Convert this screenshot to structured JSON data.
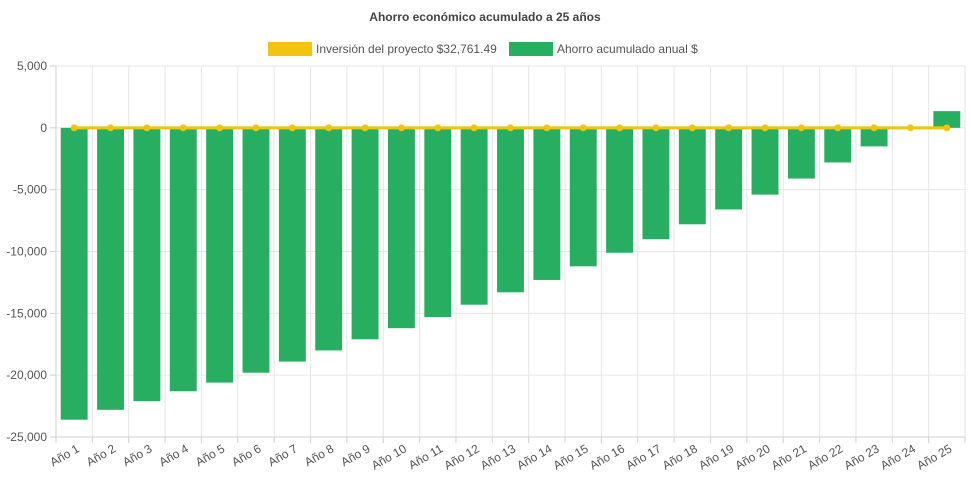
{
  "chart_data": {
    "type": "bar",
    "title": "Ahorro económico acumulado a 25 años",
    "categories": [
      "Año 1",
      "Año 2",
      "Año 3",
      "Año 4",
      "Año 5",
      "Año 6",
      "Año 7",
      "Año 8",
      "Año 9",
      "Año 10",
      "Año 11",
      "Año 12",
      "Año 13",
      "Año 14",
      "Año 15",
      "Año 16",
      "Año 17",
      "Año 18",
      "Año 19",
      "Año 20",
      "Año 21",
      "Año 22",
      "Año 23",
      "Año 24",
      "Año 25"
    ],
    "series": [
      {
        "name": "Inversión del proyecto $32,761.49",
        "kind": "line",
        "color": "#f1c40f",
        "values": [
          0,
          0,
          0,
          0,
          0,
          0,
          0,
          0,
          0,
          0,
          0,
          0,
          0,
          0,
          0,
          0,
          0,
          0,
          0,
          0,
          0,
          0,
          0,
          0,
          0
        ]
      },
      {
        "name": "Ahorro acumulado anual $",
        "kind": "bar",
        "color": "#27ae60",
        "values": [
          -23600,
          -22800,
          -22100,
          -21300,
          -20600,
          -19800,
          -18900,
          -18000,
          -17100,
          -16200,
          -15300,
          -14300,
          -13300,
          -12300,
          -11200,
          -10100,
          -9000,
          -7800,
          -6600,
          -5400,
          -4100,
          -2800,
          -1500,
          0,
          1350
        ]
      }
    ],
    "ylim": [
      -25000,
      5000
    ],
    "yticks": [
      5000,
      0,
      -5000,
      -10000,
      -15000,
      -20000,
      -25000
    ],
    "ytick_labels": [
      "5,000",
      "0",
      "-5,000",
      "-10,000",
      "-15,000",
      "-20,000",
      "-25,000"
    ],
    "grid": true,
    "legend_position": "top-center"
  }
}
